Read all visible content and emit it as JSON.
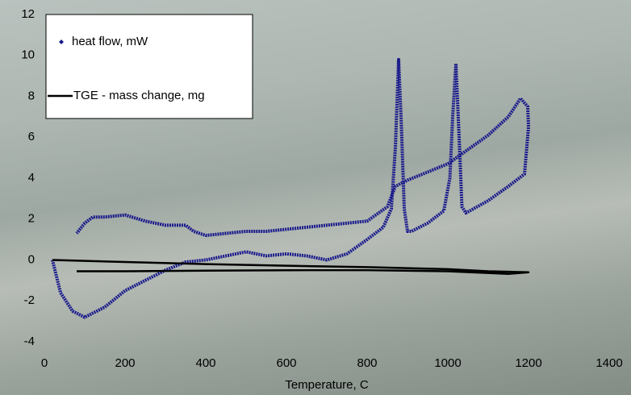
{
  "chart_data": {
    "type": "scatter",
    "x_label": "Temperature, C",
    "xlim": [
      0,
      1400
    ],
    "xticks": [
      0,
      200,
      400,
      600,
      800,
      1000,
      1200,
      1400
    ],
    "ylim": [
      -4,
      12
    ],
    "yticks": [
      -4,
      -2,
      0,
      2,
      4,
      6,
      8,
      10,
      12
    ],
    "series": [
      {
        "name": "heat flow, mW",
        "color": "#1a1a8c",
        "marker": "diamond",
        "x": [
          20,
          40,
          70,
          100,
          150,
          200,
          250,
          300,
          350,
          400,
          450,
          500,
          550,
          600,
          650,
          700,
          750,
          800,
          840,
          860,
          870,
          878,
          885,
          892,
          900,
          910,
          950,
          990,
          1005,
          1012,
          1020,
          1028,
          1035,
          1045,
          1100,
          1150,
          1190,
          1200,
          1198,
          1180,
          1150,
          1100,
          1050,
          1000,
          950,
          900,
          870,
          850,
          800,
          750,
          700,
          650,
          600,
          550,
          500,
          450,
          400,
          370,
          350,
          300,
          250,
          200,
          150,
          120,
          100,
          80
        ],
        "values": [
          0,
          -1.6,
          -2.5,
          -2.8,
          -2.3,
          -1.5,
          -1.0,
          -0.5,
          -0.1,
          0,
          0.2,
          0.4,
          0.2,
          0.3,
          0.2,
          0,
          0.3,
          1.0,
          1.6,
          2.5,
          5.5,
          9.8,
          6.5,
          2.5,
          1.4,
          1.4,
          1.8,
          2.4,
          4.0,
          7.0,
          9.6,
          6.0,
          2.6,
          2.3,
          2.9,
          3.6,
          4.2,
          6.5,
          7.5,
          7.9,
          7.0,
          6.1,
          5.4,
          4.7,
          4.3,
          3.9,
          3.6,
          2.6,
          1.9,
          1.8,
          1.7,
          1.6,
          1.5,
          1.4,
          1.4,
          1.3,
          1.2,
          1.4,
          1.7,
          1.7,
          1.9,
          2.2,
          2.1,
          2.1,
          1.8,
          1.3
        ]
      },
      {
        "name": "TGE - mass change, mg",
        "color": "#000000",
        "marker": "none",
        "x": [
          20,
          200,
          400,
          600,
          800,
          1000,
          1100,
          1200,
          1150,
          1000,
          800,
          600,
          400,
          200,
          80
        ],
        "values": [
          0,
          -0.1,
          -0.2,
          -0.28,
          -0.35,
          -0.45,
          -0.55,
          -0.6,
          -0.68,
          -0.55,
          -0.5,
          -0.5,
          -0.52,
          -0.55,
          -0.55
        ]
      }
    ]
  }
}
